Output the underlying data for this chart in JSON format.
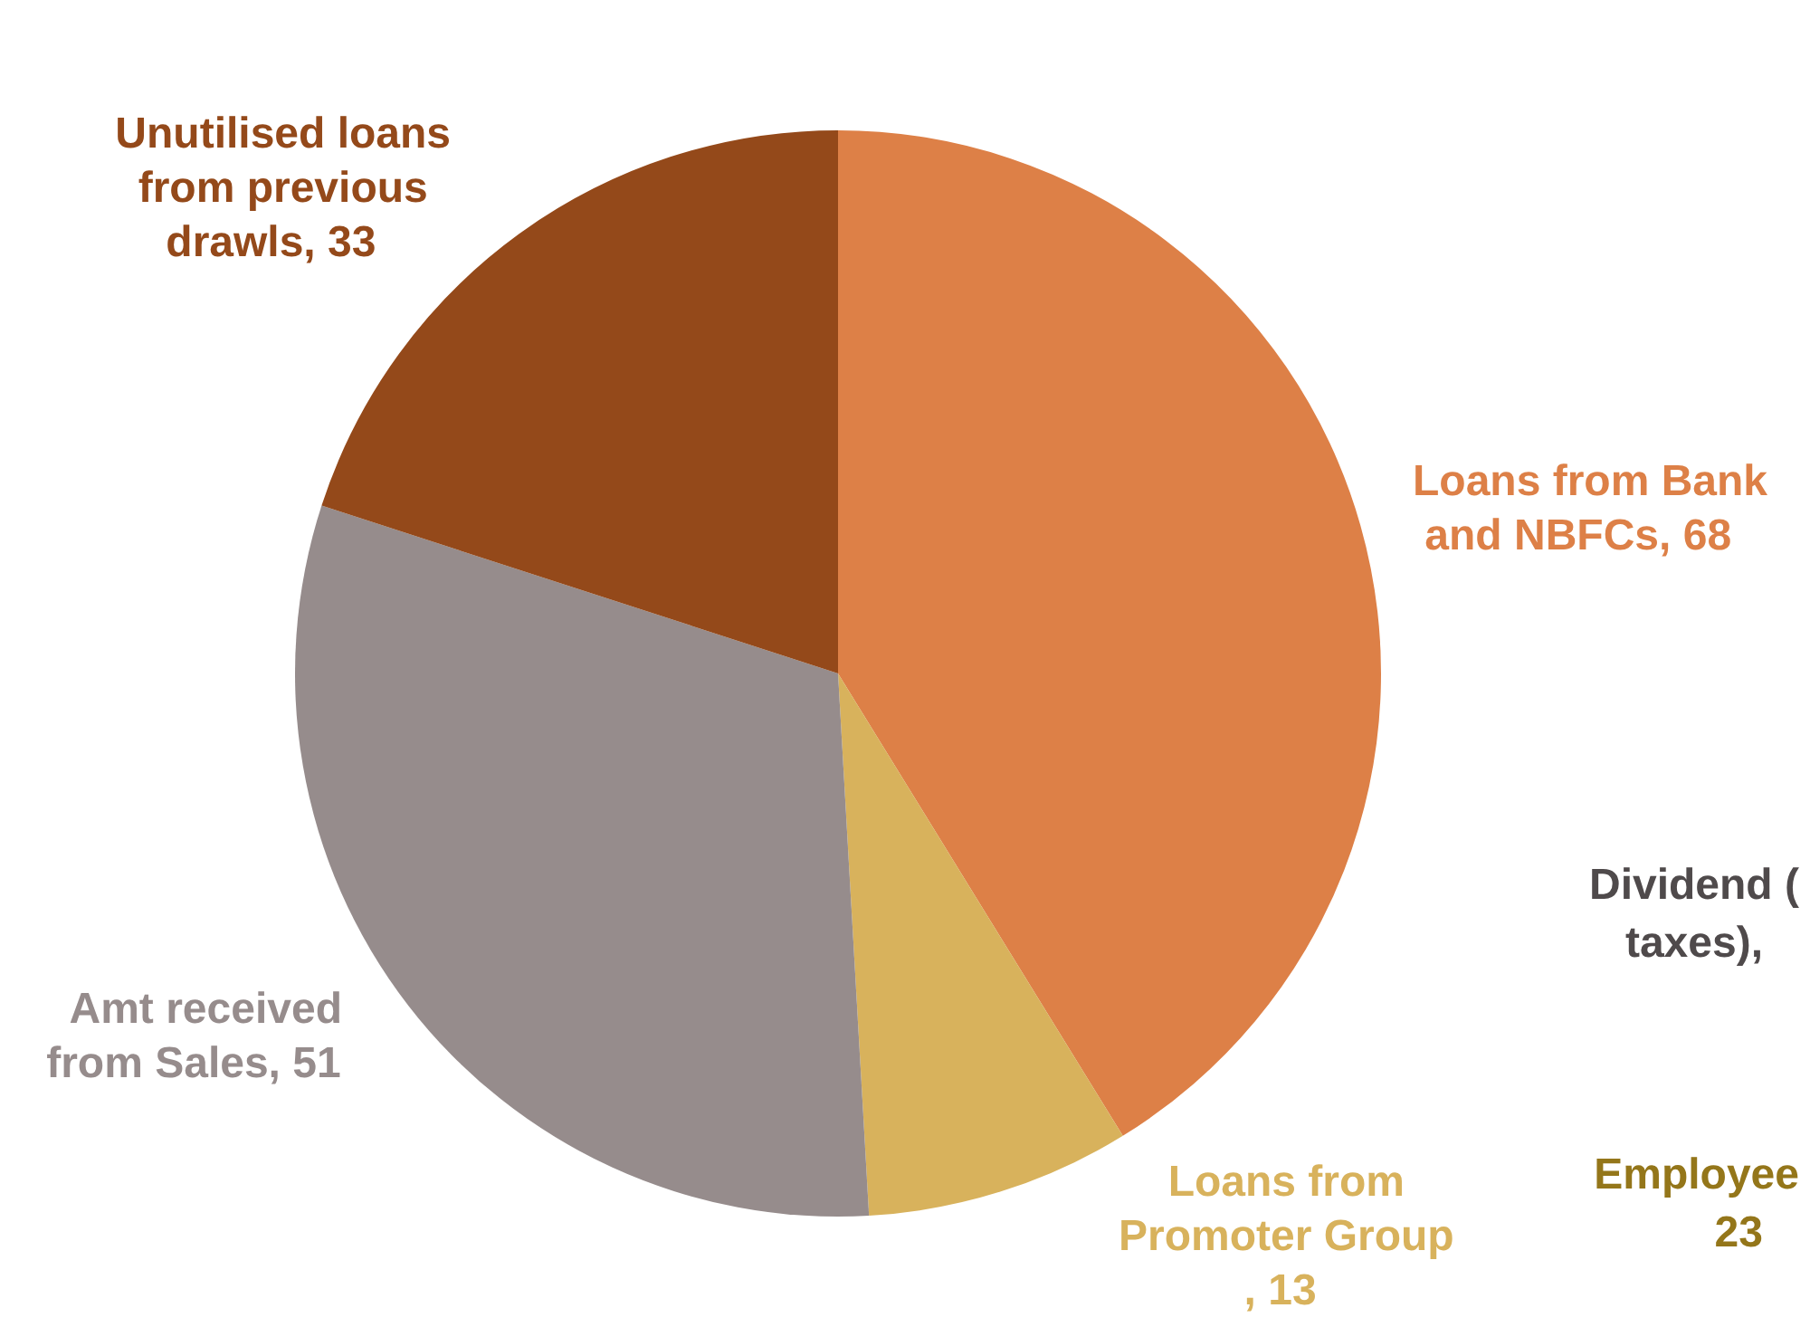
{
  "chart_data": {
    "type": "pie",
    "categories": [
      "Loans from Bank and NBFCs",
      "Loans from Promoter Group",
      "Amt received from Sales",
      "Unutilised loans from previous drawls"
    ],
    "values": [
      68,
      13,
      51,
      33
    ],
    "colors": [
      "#dd8047",
      "#d8b25c",
      "#968c8c",
      "#94491a"
    ],
    "value_labels": [
      ", 68",
      ", 13",
      ", 51",
      ", 33"
    ],
    "legend": false,
    "annotations": [
      "Dividend (\ntaxes),",
      "Employee\n23"
    ]
  }
}
